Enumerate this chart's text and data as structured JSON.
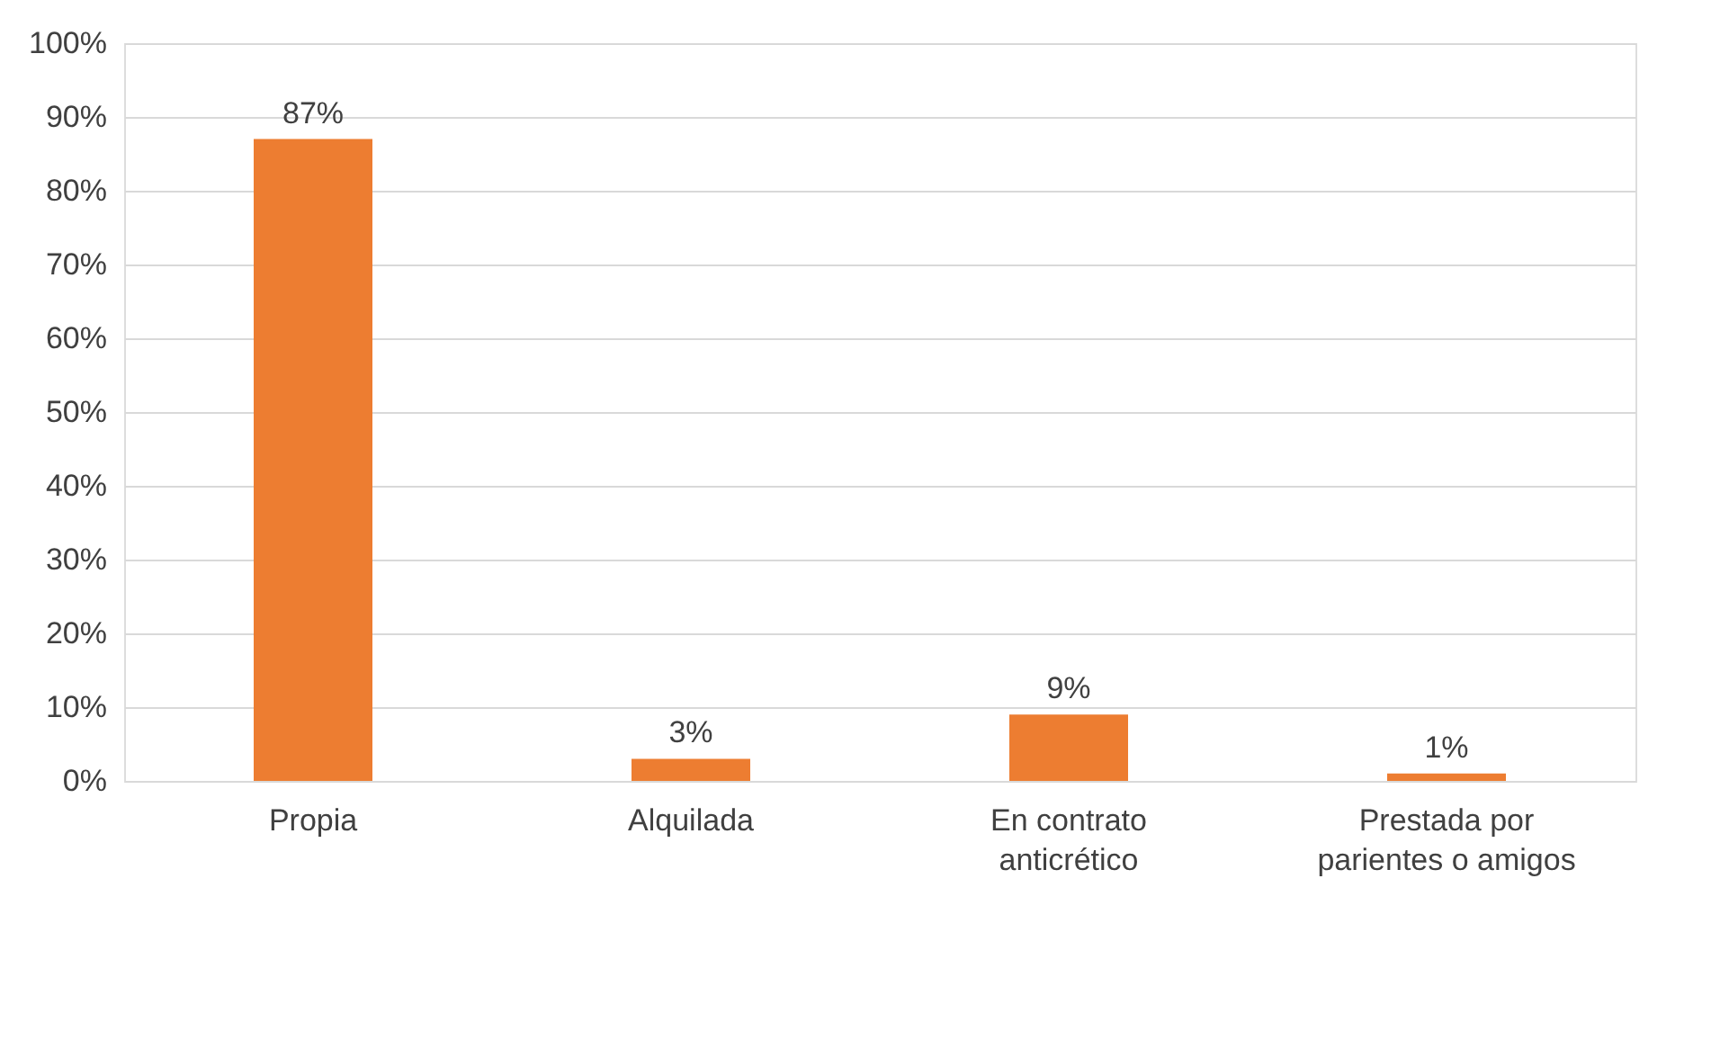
{
  "chart_data": {
    "type": "bar",
    "categories": [
      "Propia",
      "Alquilada",
      "En contrato anticrético",
      "Prestada por parientes o amigos"
    ],
    "values": [
      87,
      3,
      9,
      1
    ],
    "value_labels": [
      "87%",
      "3%",
      "9%",
      "1%"
    ],
    "color": "#ed7d31",
    "ylim": [
      0,
      100
    ],
    "yticks": [
      {
        "value": 0,
        "label": "0%"
      },
      {
        "value": 10,
        "label": "10%"
      },
      {
        "value": 20,
        "label": "20%"
      },
      {
        "value": 30,
        "label": "30%"
      },
      {
        "value": 40,
        "label": "40%"
      },
      {
        "value": 50,
        "label": "50%"
      },
      {
        "value": 60,
        "label": "60%"
      },
      {
        "value": 70,
        "label": "70%"
      },
      {
        "value": 80,
        "label": "80%"
      },
      {
        "value": 90,
        "label": "90%"
      },
      {
        "value": 100,
        "label": "100%"
      }
    ],
    "grid": "y"
  }
}
